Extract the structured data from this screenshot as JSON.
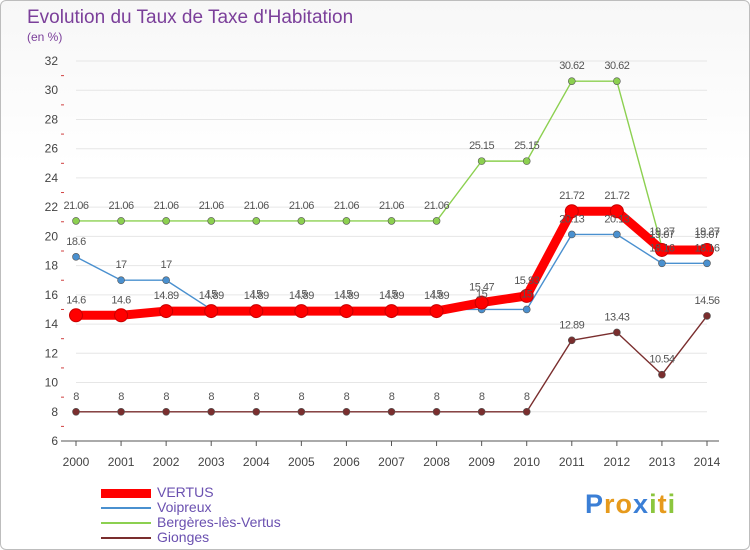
{
  "title": "Evolution du Taux de Taxe d'Habitation",
  "subtitle": "(en %)",
  "chart_data": {
    "type": "line",
    "x": [
      "2000",
      "2001",
      "2002",
      "2003",
      "2004",
      "2005",
      "2006",
      "2007",
      "2008",
      "2009",
      "2010",
      "2011",
      "2012",
      "2013",
      "2014"
    ],
    "ylim": [
      6,
      32
    ],
    "yticks": [
      "6",
      "8",
      "10",
      "12",
      "14",
      "16",
      "18",
      "20",
      "22",
      "24",
      "26",
      "28",
      "30",
      "32"
    ],
    "grid": "horizontal",
    "legend": "bottom-left",
    "series": [
      {
        "name": "VERTUS",
        "color": "#ff0000",
        "values": [
          14.6,
          14.6,
          14.89,
          14.89,
          14.89,
          14.89,
          14.89,
          14.89,
          14.89,
          15.47,
          15.93,
          21.72,
          21.72,
          19.07,
          19.07
        ],
        "labels": [
          "14.6",
          "14.6",
          "14.89",
          "14.89",
          "14.89",
          "14.89",
          "14.89",
          "14.89",
          "14.89",
          "15.47",
          "15.93",
          "21.72",
          "21.72",
          "19.07",
          "19.07"
        ]
      },
      {
        "name": "Voipreux",
        "color": "#4a90cf",
        "values": [
          18.6,
          17,
          17,
          15,
          15,
          15,
          15,
          15,
          15,
          15,
          15,
          20.13,
          20.13,
          18.16,
          18.16
        ],
        "labels": [
          "18.6",
          "17",
          "17",
          "15",
          "15",
          "15",
          "15",
          "15",
          "15",
          "15",
          "15",
          "20.13",
          "20.13",
          "18.16",
          "18.16"
        ]
      },
      {
        "name": "Bergères-lès-Vertus",
        "color": "#8cd050",
        "values": [
          21.06,
          21.06,
          21.06,
          21.06,
          21.06,
          21.06,
          21.06,
          21.06,
          21.06,
          25.15,
          25.15,
          30.62,
          30.62,
          19.27,
          19.27
        ],
        "labels": [
          "21.06",
          "21.06",
          "21.06",
          "21.06",
          "21.06",
          "21.06",
          "21.06",
          "21.06",
          "21.06",
          "25.15",
          "25.15",
          "30.62",
          "30.62",
          "19.27",
          "19.27"
        ]
      },
      {
        "name": "Gionges",
        "color": "#7a2e2e",
        "values": [
          8,
          8,
          8,
          8,
          8,
          8,
          8,
          8,
          8,
          8,
          8,
          12.89,
          13.43,
          10.54,
          14.56
        ],
        "labels": [
          "8",
          "8",
          "8",
          "8",
          "8",
          "8",
          "8",
          "8",
          "8",
          "8",
          "8",
          "12.89",
          "13.43",
          "10.54",
          "14.56"
        ]
      }
    ]
  },
  "logo": {
    "text": "Proxiti",
    "letters": [
      {
        "ch": "P",
        "color": "#3b7fd6"
      },
      {
        "ch": "r",
        "color": "#e69a1c"
      },
      {
        "ch": "o",
        "color": "#e69a1c"
      },
      {
        "ch": "x",
        "color": "#3b7fd6"
      },
      {
        "ch": "i",
        "color": "#8cc63e"
      },
      {
        "ch": "t",
        "color": "#e69a1c"
      },
      {
        "ch": "i",
        "color": "#8cc63e"
      }
    ]
  }
}
